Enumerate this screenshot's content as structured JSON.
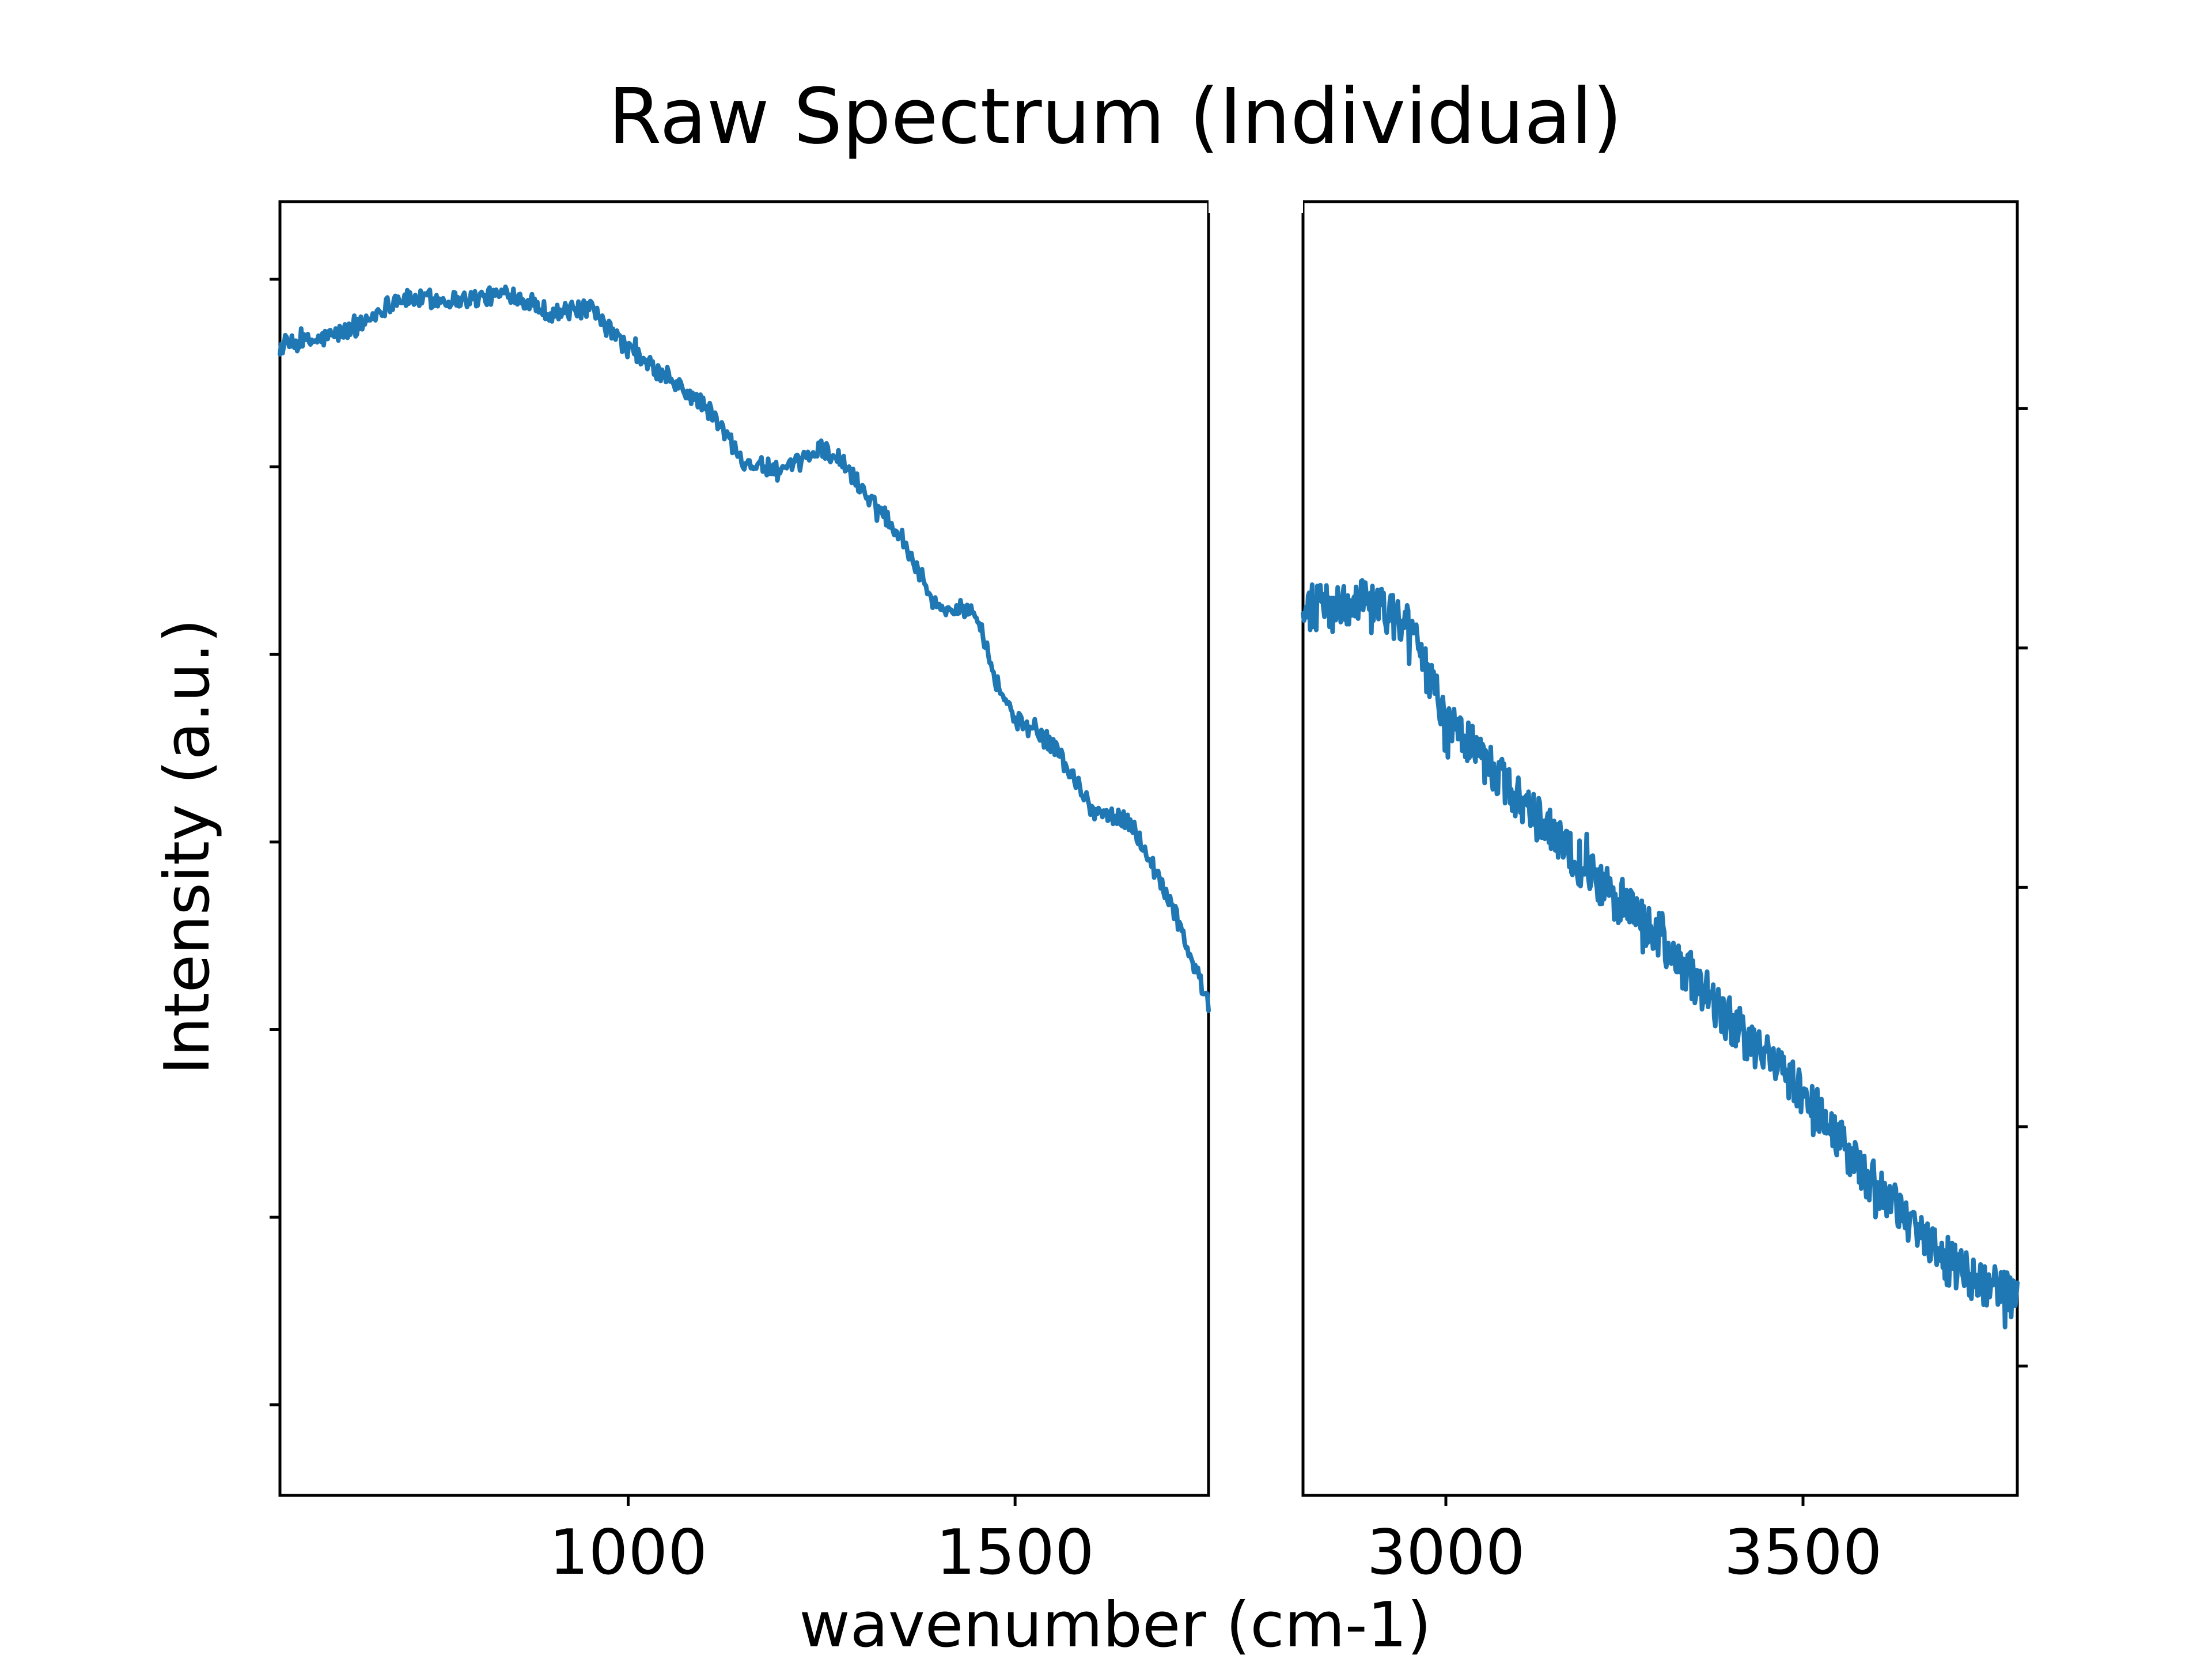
{
  "chart_data": {
    "type": "line",
    "title": "Raw Spectrum (Individual)",
    "xlabel": "wavenumber (cm-1)",
    "ylabel": "Intensity (a.u.)",
    "grid": false,
    "legend": "none",
    "colors": {
      "line": "#1f77b4",
      "frame": "#000000",
      "background": "#ffffff"
    },
    "panels": [
      {
        "xlim": [
          550,
          1750
        ],
        "ylim": [
          0.0,
          1.0
        ],
        "xticks": [
          1000,
          1500
        ],
        "xtick_labels": [
          "1000",
          "1500"
        ],
        "yticks": [
          0.07,
          0.215,
          0.36,
          0.505,
          0.65,
          0.795,
          0.94
        ],
        "tick_side": "left",
        "series": [
          {
            "x": [
              550,
              600,
              650,
              700,
              750,
              800,
              850,
              900,
              950,
              1000,
              1050,
              1100,
              1150,
              1200,
              1250,
              1275,
              1300,
              1350,
              1400,
              1450,
              1475,
              1500,
              1550,
              1600,
              1650,
              1700,
              1750
            ],
            "y": [
              0.888,
              0.893,
              0.903,
              0.925,
              0.924,
              0.925,
              0.929,
              0.914,
              0.917,
              0.886,
              0.863,
              0.842,
              0.8,
              0.79,
              0.81,
              0.8,
              0.78,
              0.745,
              0.685,
              0.685,
              0.63,
              0.6,
              0.58,
              0.53,
              0.52,
              0.46,
              0.38
            ],
            "noise": 0.007
          }
        ]
      },
      {
        "xlim": [
          2800,
          3800
        ],
        "ylim": [
          0.0,
          1.0
        ],
        "xticks": [
          3000,
          3500
        ],
        "xtick_labels": [
          "3000",
          "3500"
        ],
        "yticks": [
          0.1,
          0.285,
          0.47,
          0.655,
          0.84
        ],
        "tick_side": "right",
        "series": [
          {
            "x": [
              2800,
              2850,
              2900,
              2950,
              3000,
              3100,
              3200,
              3300,
              3400,
              3500,
              3600,
              3700,
              3800
            ],
            "y": [
              0.685,
              0.69,
              0.69,
              0.67,
              0.6,
              0.54,
              0.48,
              0.43,
              0.365,
              0.31,
              0.24,
              0.18,
              0.15
            ],
            "noise": 0.018
          }
        ]
      }
    ]
  }
}
